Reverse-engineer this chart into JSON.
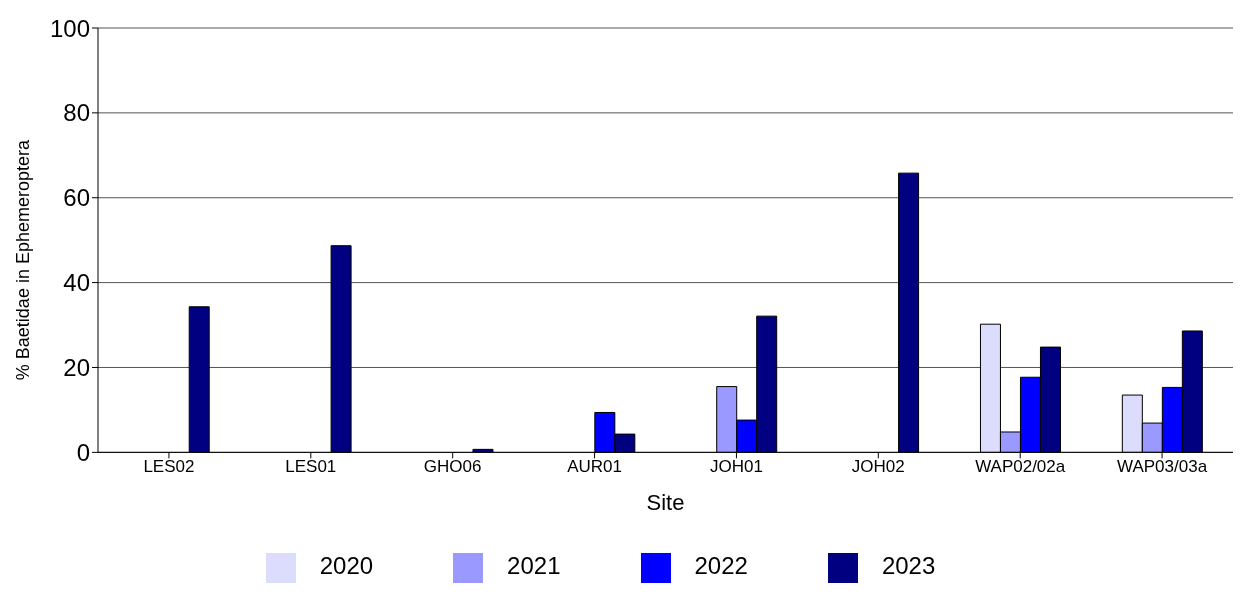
{
  "chart_data": {
    "type": "bar",
    "xlabel": "Site",
    "ylabel": "% Baetidae in Ephemeroptera",
    "categories": [
      "LES02",
      "LES01",
      "GHO06",
      "AUR01",
      "JOH01",
      "JOH02",
      "WAP02/02a",
      "WAP03/03a"
    ],
    "series": [
      {
        "name": "2020",
        "color": "#dcdcfc",
        "values": [
          null,
          null,
          null,
          null,
          null,
          null,
          30.2,
          13.5
        ]
      },
      {
        "name": "2021",
        "color": "#9999ff",
        "values": [
          null,
          null,
          null,
          null,
          15.5,
          null,
          4.8,
          6.9
        ]
      },
      {
        "name": "2022",
        "color": "#0000ff",
        "values": [
          null,
          null,
          null,
          9.4,
          7.6,
          null,
          17.7,
          15.3
        ]
      },
      {
        "name": "2023",
        "color": "#000080",
        "values": [
          34.3,
          48.7,
          0.7,
          4.3,
          32.1,
          65.8,
          24.8,
          28.6
        ]
      }
    ],
    "ylim": [
      0,
      100
    ],
    "yticks": [
      0,
      20,
      40,
      60,
      80,
      100
    ],
    "grid": "y",
    "legend": "bottom"
  }
}
